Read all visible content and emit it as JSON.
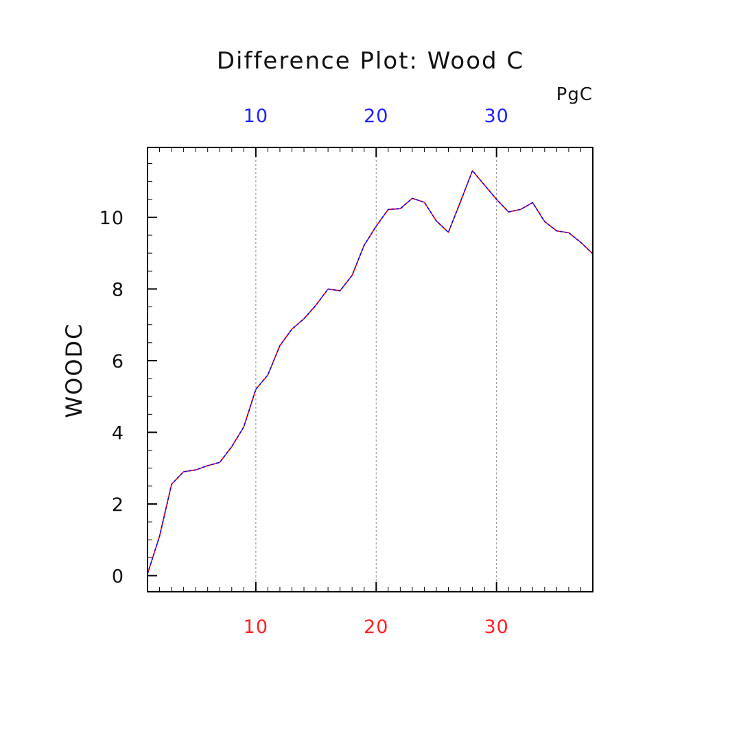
{
  "chart_data": {
    "type": "line",
    "title": "Difference Plot: Wood C",
    "units": "PgC",
    "ylabel": "WOODC",
    "xlabel": "",
    "xlim": [
      1,
      38
    ],
    "ylim": [
      -0.45,
      11.95
    ],
    "grid": "vertical dashed at major x ticks",
    "x_major_ticks": [
      10,
      20,
      30
    ],
    "x_minor_step": 1,
    "y_major_ticks": [
      0,
      2,
      4,
      6,
      8,
      10
    ],
    "y_minor_step": 0.5,
    "bottom_axis_color": "#ff2020",
    "top_axis_color": "#2020ff",
    "x": [
      1,
      2,
      3,
      4,
      5,
      6,
      7,
      8,
      9,
      10,
      11,
      12,
      13,
      14,
      15,
      16,
      17,
      18,
      19,
      20,
      21,
      22,
      23,
      24,
      25,
      26,
      27,
      28,
      29,
      30,
      31,
      32,
      33,
      34,
      35,
      36,
      37,
      38
    ],
    "series": [
      {
        "color": "#ff0000",
        "style": "solid",
        "values": [
          0.05,
          1.1,
          2.55,
          2.9,
          2.95,
          3.07,
          3.16,
          3.6,
          4.15,
          5.2,
          5.6,
          6.42,
          6.88,
          7.17,
          7.55,
          8.0,
          7.95,
          8.38,
          9.22,
          9.75,
          10.22,
          10.24,
          10.53,
          10.42,
          9.9,
          9.58,
          10.43,
          11.3,
          10.9,
          10.5,
          10.15,
          10.22,
          10.41,
          9.88,
          9.62,
          9.57,
          9.3,
          8.98
        ]
      },
      {
        "color": "#0000ff",
        "style": "dashed",
        "values": [
          0.05,
          1.1,
          2.55,
          2.9,
          2.95,
          3.07,
          3.16,
          3.6,
          4.15,
          5.2,
          5.6,
          6.42,
          6.88,
          7.17,
          7.55,
          8.0,
          7.95,
          8.38,
          9.22,
          9.75,
          10.22,
          10.24,
          10.53,
          10.42,
          9.9,
          9.58,
          10.43,
          11.3,
          10.9,
          10.5,
          10.15,
          10.22,
          10.41,
          9.88,
          9.62,
          9.57,
          9.3,
          8.98
        ]
      }
    ]
  }
}
